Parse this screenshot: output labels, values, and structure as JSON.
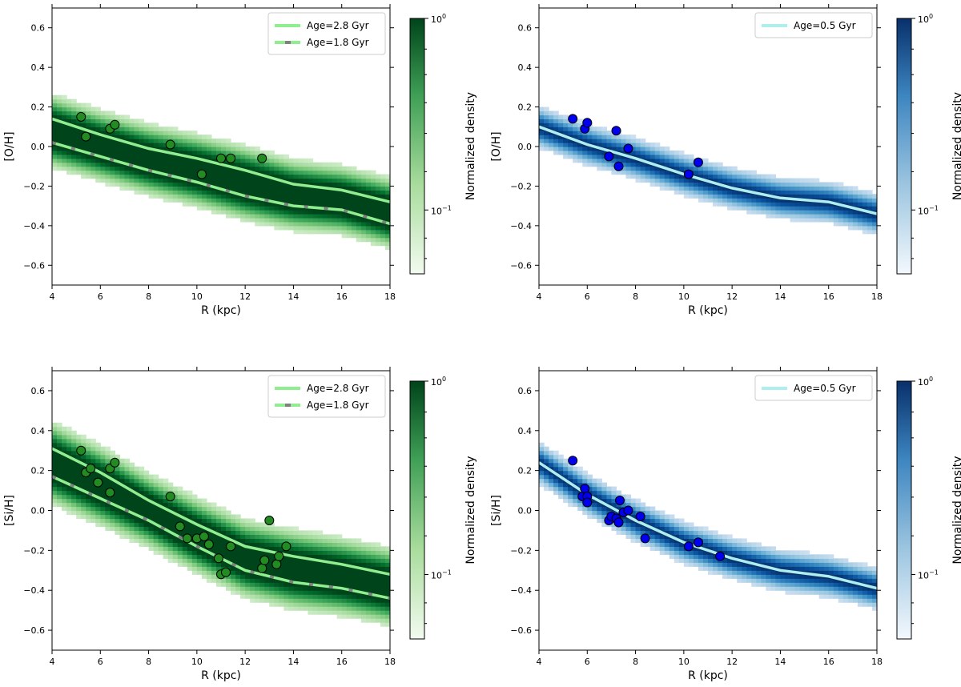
{
  "chart_data": [
    {
      "type": "scatter",
      "panel": "top-left",
      "theme": "green",
      "xlabel": "R (kpc)",
      "ylabel": "[O/H]",
      "xlim": [
        4,
        18
      ],
      "ylim": [
        -0.7,
        0.7
      ],
      "xticks": [
        4,
        6,
        8,
        10,
        12,
        14,
        16,
        18
      ],
      "yticks": [
        -0.6,
        -0.4,
        -0.2,
        0.0,
        0.2,
        0.4,
        0.6
      ],
      "colorbar": {
        "label": "Normalized density",
        "ticks": [
          "10^0",
          "10^-1"
        ]
      },
      "legend_position": "top-right",
      "band_sigma": 0.055,
      "series": [
        {
          "name": "Age=2.8 Gyr",
          "style": "solid",
          "color": "#90ee90",
          "x": [
            4,
            6,
            8,
            10,
            12,
            14,
            16,
            18
          ],
          "y": [
            0.14,
            0.06,
            -0.01,
            -0.06,
            -0.12,
            -0.19,
            -0.22,
            -0.28
          ]
        },
        {
          "name": "Age=1.8 Gyr",
          "style": "dashed",
          "color": "#90ee90",
          "x": [
            4,
            6,
            8,
            10,
            12,
            14,
            16,
            18
          ],
          "y": [
            0.02,
            -0.05,
            -0.12,
            -0.18,
            -0.25,
            -0.3,
            -0.32,
            -0.39
          ]
        }
      ],
      "points": {
        "color": "#228b22",
        "x": [
          5.2,
          5.4,
          6.4,
          6.6,
          8.9,
          10.2,
          11.0,
          11.4,
          12.7
        ],
        "y": [
          0.15,
          0.05,
          0.09,
          0.11,
          0.01,
          -0.14,
          -0.06,
          -0.06,
          -0.06
        ]
      }
    },
    {
      "type": "scatter",
      "panel": "top-right",
      "theme": "blue",
      "xlabel": "R (kpc)",
      "ylabel": "[O/H]",
      "xlim": [
        4,
        18
      ],
      "ylim": [
        -0.7,
        0.7
      ],
      "xticks": [
        4,
        6,
        8,
        10,
        12,
        14,
        16,
        18
      ],
      "yticks": [
        -0.6,
        -0.4,
        -0.2,
        0.0,
        0.2,
        0.4,
        0.6
      ],
      "colorbar": {
        "label": "Normalized density",
        "ticks": [
          "10^0",
          "10^-1"
        ]
      },
      "legend_position": "top-right",
      "band_sigma": 0.045,
      "series": [
        {
          "name": "Age=0.5 Gyr",
          "style": "solid",
          "color": "#afeeee",
          "x": [
            4,
            6,
            8,
            10,
            12,
            14,
            16,
            18
          ],
          "y": [
            0.1,
            0.01,
            -0.06,
            -0.14,
            -0.21,
            -0.26,
            -0.28,
            -0.34
          ]
        }
      ],
      "points": {
        "color": "#0000ee",
        "x": [
          5.4,
          5.9,
          6.0,
          6.9,
          7.2,
          7.3,
          7.7,
          10.2,
          10.6
        ],
        "y": [
          0.14,
          0.09,
          0.12,
          -0.05,
          0.08,
          -0.1,
          -0.01,
          -0.14,
          -0.08
        ]
      }
    },
    {
      "type": "scatter",
      "panel": "bottom-left",
      "theme": "green",
      "xlabel": "R (kpc)",
      "ylabel": "[Si/H]",
      "xlim": [
        4,
        18
      ],
      "ylim": [
        -0.7,
        0.7
      ],
      "xticks": [
        4,
        6,
        8,
        10,
        12,
        14,
        16,
        18
      ],
      "yticks": [
        -0.6,
        -0.4,
        -0.2,
        0.0,
        0.2,
        0.4,
        0.6
      ],
      "colorbar": {
        "label": "Normalized density",
        "ticks": [
          "10^0",
          "10^-1"
        ]
      },
      "legend_position": "top-right",
      "band_sigma": 0.06,
      "series": [
        {
          "name": "Age=2.8 Gyr",
          "style": "solid",
          "color": "#90ee90",
          "x": [
            4,
            6,
            8,
            10,
            12,
            14,
            16,
            18
          ],
          "y": [
            0.31,
            0.19,
            0.05,
            -0.07,
            -0.18,
            -0.23,
            -0.27,
            -0.32
          ]
        },
        {
          "name": "Age=1.8 Gyr",
          "style": "dashed",
          "color": "#90ee90",
          "x": [
            4,
            6,
            8,
            10,
            12,
            14,
            16,
            18
          ],
          "y": [
            0.17,
            0.06,
            -0.05,
            -0.18,
            -0.3,
            -0.36,
            -0.39,
            -0.44
          ]
        }
      ],
      "points": {
        "color": "#228b22",
        "x": [
          5.2,
          5.4,
          5.6,
          5.9,
          6.4,
          6.4,
          6.6,
          8.9,
          9.3,
          9.6,
          10.0,
          10.3,
          10.5,
          10.9,
          11.0,
          11.2,
          11.4,
          12.7,
          12.8,
          13.0,
          13.3,
          13.4,
          13.7
        ],
        "y": [
          0.3,
          0.19,
          0.21,
          0.14,
          0.21,
          0.09,
          0.24,
          0.07,
          -0.08,
          -0.14,
          -0.14,
          -0.13,
          -0.17,
          -0.24,
          -0.32,
          -0.31,
          -0.18,
          -0.29,
          -0.25,
          -0.05,
          -0.27,
          -0.23,
          -0.18
        ]
      }
    },
    {
      "type": "scatter",
      "panel": "bottom-right",
      "theme": "blue",
      "xlabel": "R (kpc)",
      "ylabel": "[Si/H]",
      "xlim": [
        4,
        18
      ],
      "ylim": [
        -0.7,
        0.7
      ],
      "xticks": [
        4,
        6,
        8,
        10,
        12,
        14,
        16,
        18
      ],
      "yticks": [
        -0.6,
        -0.4,
        -0.2,
        0.0,
        0.2,
        0.4,
        0.6
      ],
      "colorbar": {
        "label": "Normalized density",
        "ticks": [
          "10^0",
          "10^-1"
        ]
      },
      "legend_position": "top-right",
      "band_sigma": 0.045,
      "series": [
        {
          "name": "Age=0.5 Gyr",
          "style": "solid",
          "color": "#afeeee",
          "x": [
            4,
            6,
            8,
            10,
            12,
            14,
            16,
            18
          ],
          "y": [
            0.24,
            0.08,
            -0.05,
            -0.16,
            -0.24,
            -0.3,
            -0.33,
            -0.39
          ]
        }
      ],
      "points": {
        "color": "#0000ee",
        "x": [
          5.4,
          5.8,
          5.9,
          6.0,
          6.0,
          6.9,
          7.0,
          7.2,
          7.3,
          7.35,
          7.5,
          7.7,
          8.2,
          8.4,
          10.2,
          10.6,
          11.5
        ],
        "y": [
          0.25,
          0.07,
          0.11,
          0.07,
          0.04,
          -0.05,
          -0.03,
          -0.04,
          -0.06,
          0.05,
          -0.01,
          0.0,
          -0.03,
          -0.14,
          -0.18,
          -0.16,
          -0.23
        ]
      }
    }
  ]
}
